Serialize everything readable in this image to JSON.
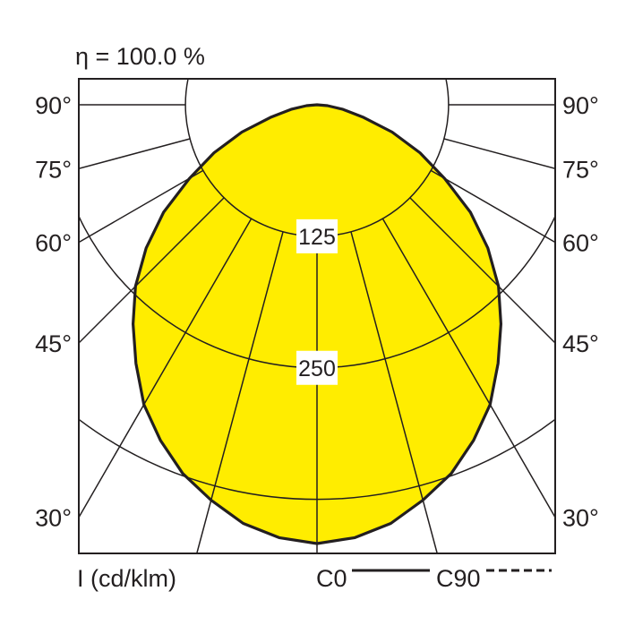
{
  "chart_data": {
    "type": "polar-line",
    "title": "η = 100.0 %",
    "unit_label": "I (cd/klm)",
    "radial_ticks": [
      125,
      250,
      375
    ],
    "radial_tick_labels": [
      "125",
      "250"
    ],
    "angle_ticks": [
      30,
      45,
      60,
      75,
      90
    ],
    "angle_tick_labels": [
      "30°",
      "45°",
      "60°",
      "75°",
      "90°"
    ],
    "legend": [
      {
        "name": "C0",
        "style": "solid"
      },
      {
        "name": "C90",
        "style": "dashed"
      }
    ],
    "legend_placement": "bottom-right",
    "fill_color": "#ffed00",
    "line_color": "#231f20",
    "series": [
      {
        "name": "C0",
        "angles": [
          0,
          5,
          10,
          15,
          20,
          25,
          30,
          35,
          40,
          45,
          50,
          55,
          60,
          65,
          70,
          75,
          80,
          85,
          90
        ],
        "values": [
          417,
          413,
          404,
          389,
          373,
          352,
          329,
          300,
          272,
          244,
          212,
          178,
          140,
          108,
          76,
          45,
          25,
          10,
          0
        ]
      }
    ]
  }
}
